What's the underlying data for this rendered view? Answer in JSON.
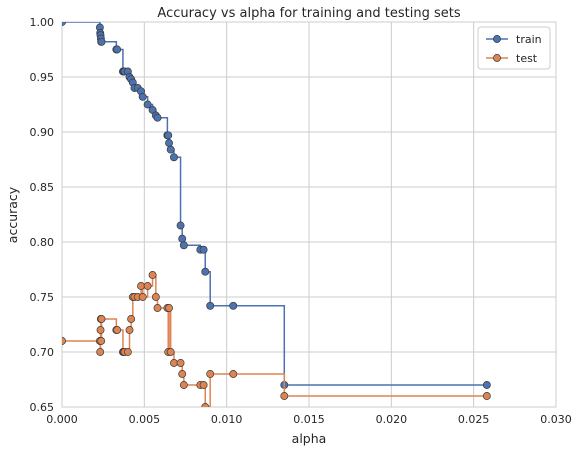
{
  "chart_data": {
    "type": "line",
    "title": "Accuracy vs alpha for training and testing sets",
    "xlabel": "alpha",
    "ylabel": "accuracy",
    "xlim": [
      0.0,
      0.03
    ],
    "ylim": [
      0.65,
      1.0
    ],
    "x_ticks": [
      0.0,
      0.005,
      0.01,
      0.015,
      0.02,
      0.025,
      0.03
    ],
    "x_tick_labels": [
      "0.000",
      "0.005",
      "0.010",
      "0.015",
      "0.020",
      "0.025",
      "0.030"
    ],
    "y_ticks": [
      0.65,
      0.7,
      0.75,
      0.8,
      0.85,
      0.9,
      0.95,
      1.0
    ],
    "y_tick_labels": [
      "0.65",
      "0.70",
      "0.75",
      "0.80",
      "0.85",
      "0.90",
      "0.95",
      "1.00"
    ],
    "grid": true,
    "legend_position": "top-right",
    "drawstyle": "steps-post",
    "marker": "circle",
    "series": [
      {
        "name": "train",
        "color": "#4c72b0",
        "x": [
          0.0,
          0.0023,
          0.00232,
          0.00234,
          0.00236,
          0.00238,
          0.0024,
          0.0033,
          0.00335,
          0.0037,
          0.00375,
          0.0038,
          0.004,
          0.0041,
          0.0042,
          0.0043,
          0.0044,
          0.0046,
          0.0048,
          0.0049,
          0.0052,
          0.0055,
          0.0057,
          0.0058,
          0.0064,
          0.00645,
          0.0065,
          0.0066,
          0.0068,
          0.0072,
          0.0073,
          0.0074,
          0.0084,
          0.0086,
          0.0087,
          0.009,
          0.0104,
          0.0135,
          0.0258
        ],
        "values": [
          1.0,
          0.995,
          0.99,
          0.988,
          0.985,
          0.982,
          0.982,
          0.975,
          0.975,
          0.955,
          0.955,
          0.955,
          0.955,
          0.95,
          0.948,
          0.945,
          0.94,
          0.94,
          0.937,
          0.932,
          0.925,
          0.92,
          0.915,
          0.913,
          0.897,
          0.897,
          0.89,
          0.884,
          0.877,
          0.815,
          0.803,
          0.797,
          0.793,
          0.793,
          0.773,
          0.742,
          0.742,
          0.67,
          0.67
        ]
      },
      {
        "name": "test",
        "color": "#dd8452",
        "x": [
          0.0,
          0.0023,
          0.00232,
          0.00234,
          0.00236,
          0.00238,
          0.0024,
          0.0033,
          0.00335,
          0.0037,
          0.00375,
          0.0038,
          0.004,
          0.0041,
          0.0042,
          0.0043,
          0.0044,
          0.0046,
          0.0048,
          0.0049,
          0.0052,
          0.0055,
          0.0057,
          0.0058,
          0.0064,
          0.00645,
          0.0065,
          0.0066,
          0.0068,
          0.0072,
          0.0073,
          0.0074,
          0.0084,
          0.0086,
          0.0087,
          0.009,
          0.0104,
          0.0135,
          0.0258
        ],
        "values": [
          0.71,
          0.71,
          0.7,
          0.72,
          0.73,
          0.71,
          0.73,
          0.72,
          0.72,
          0.7,
          0.7,
          0.7,
          0.7,
          0.72,
          0.73,
          0.75,
          0.75,
          0.75,
          0.76,
          0.75,
          0.76,
          0.77,
          0.75,
          0.74,
          0.74,
          0.7,
          0.74,
          0.7,
          0.69,
          0.69,
          0.68,
          0.67,
          0.67,
          0.67,
          0.65,
          0.68,
          0.68,
          0.66,
          0.66
        ]
      }
    ]
  }
}
